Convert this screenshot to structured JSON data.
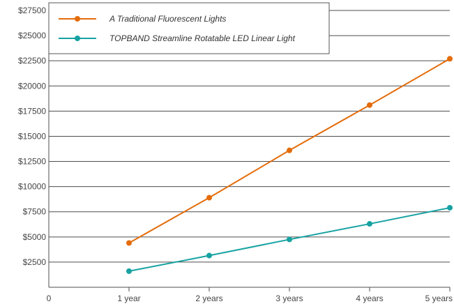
{
  "chart_data": {
    "type": "line",
    "x": [
      1,
      2,
      3,
      4,
      5
    ],
    "x_tick_labels": [
      "0",
      "1 year",
      "2 years",
      "3 years",
      "4 years",
      "5 years"
    ],
    "xlim": [
      0,
      5
    ],
    "ylim": [
      0,
      27500
    ],
    "y_tick_labels": [
      "$2500",
      "$5000",
      "$7500",
      "$10000",
      "$12500",
      "$15000",
      "$17500",
      "$20000",
      "$22500",
      "$25000",
      "$27500"
    ],
    "y_ticks": [
      2500,
      5000,
      7500,
      10000,
      12500,
      15000,
      17500,
      20000,
      22500,
      25000,
      27500
    ],
    "grid": "horizontal",
    "legend_position": "top-left",
    "series": [
      {
        "name": "A Traditional Fluorescent Lights",
        "color": "#e46c0a",
        "values": [
          4400,
          8900,
          13600,
          18100,
          22700
        ]
      },
      {
        "name": "TOPBAND Streamline Rotatable LED Linear Light",
        "color": "#17a2a2",
        "values": [
          1600,
          3150,
          4750,
          6300,
          7900
        ]
      }
    ],
    "title": "",
    "xlabel": "",
    "ylabel": ""
  }
}
